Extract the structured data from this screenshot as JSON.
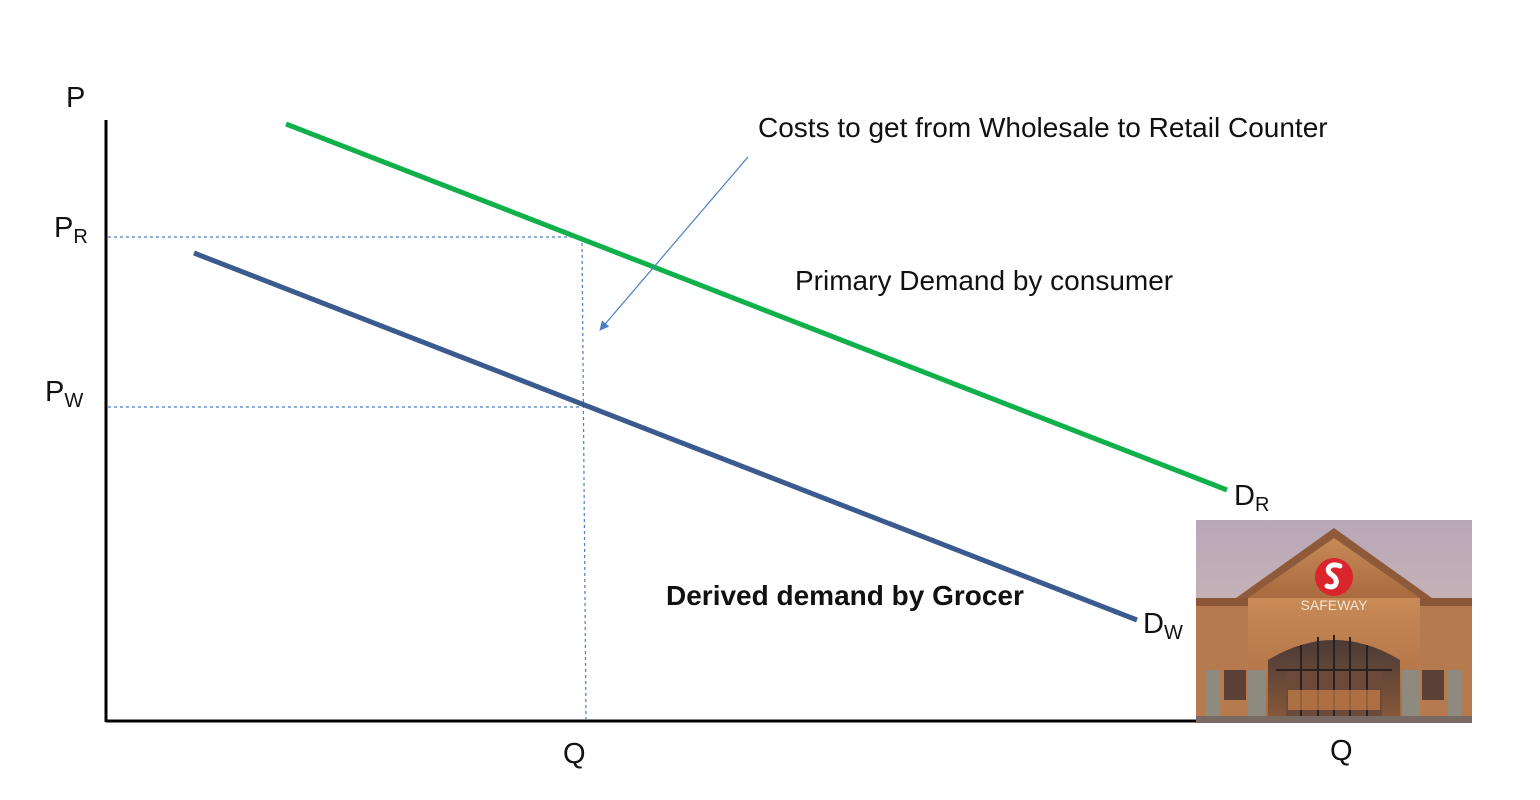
{
  "axes": {
    "y_label": "P",
    "x_label": "Q"
  },
  "price_labels": {
    "retail": {
      "main": "P",
      "sub": "R"
    },
    "wholesale": {
      "main": "P",
      "sub": "W"
    }
  },
  "quantity_label": "Q",
  "curves": {
    "retail": {
      "main": "D",
      "sub": "R",
      "color": "#10b04a"
    },
    "wholesale": {
      "main": "D",
      "sub": "W",
      "color": "#3b5b8f"
    }
  },
  "guide_color": "#4a7fc1",
  "annotations": {
    "costs": "Costs to get from Wholesale to Retail Counter",
    "primary": "Primary Demand by consumer",
    "derived": "Derived demand by Grocer"
  },
  "store_sign": "SAFEWAY"
}
